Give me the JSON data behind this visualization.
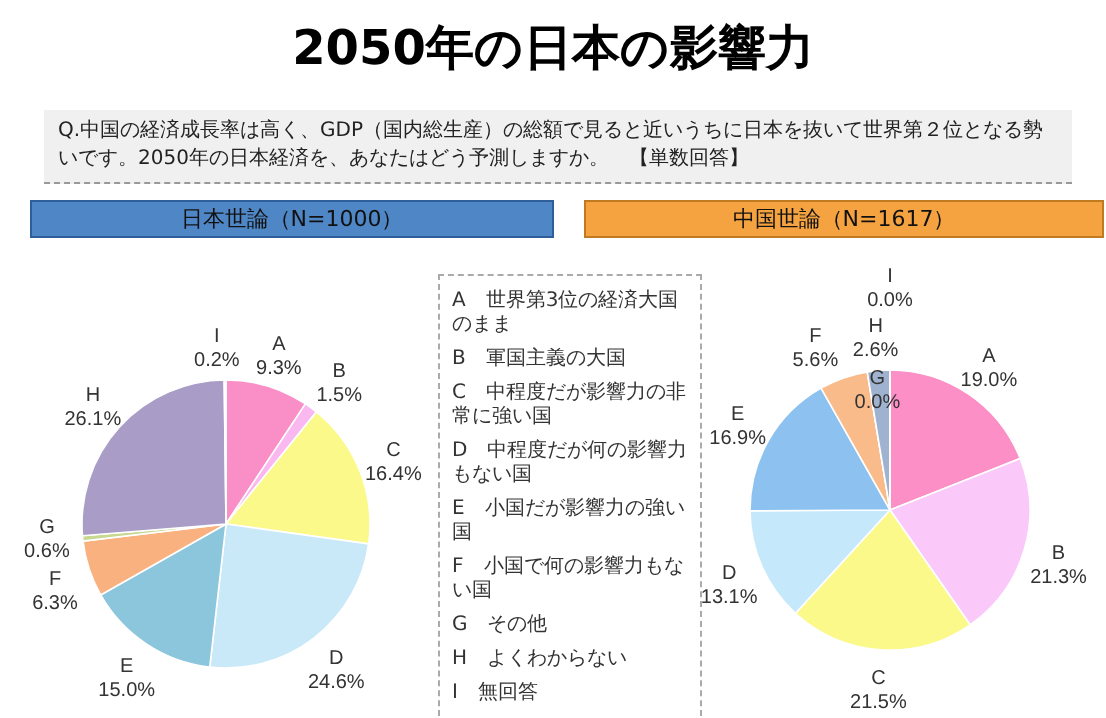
{
  "chart_data": [
    {
      "type": "other",
      "title": "2050年の日本の影響力",
      "subtitle": "Q.中国の経済成長率は高く、GDP（国内総生産）の総額で見ると近いうちに日本を抜いて世界第２位となる勢いです。2050年の日本経済を、あなたはどう予測しますか。　【単数回答】",
      "annotations": [
        "A　世界第3位の経済大国のまま",
        "B　軍国主義の大国",
        "C　中程度だが影響力の非常に強い国",
        "D　中程度だが何の影響力もない国",
        "E　小国だが影響力の強い国",
        "F　小国で何の影響力もない国",
        "G　その他",
        "H　よくわからない",
        "I　無回答"
      ]
    },
    {
      "type": "pie",
      "title": "日本世論（N=1000）",
      "categories": [
        "A",
        "B",
        "C",
        "D",
        "E",
        "F",
        "G",
        "H",
        "I"
      ],
      "values": [
        9.3,
        1.5,
        16.4,
        24.6,
        15.0,
        6.3,
        0.6,
        26.1,
        0.2
      ],
      "colors": [
        "#f98fc6",
        "#f9b8f0",
        "#fbf98a",
        "#c9e9f9",
        "#8cc6dc",
        "#f9b27f",
        "#c8d890",
        "#a99cc7",
        "#e8e8e8"
      ],
      "value_labels": [
        "9.3%",
        "1.5%",
        "16.4%",
        "24.6%",
        "15.0%",
        "6.3%",
        "0.6%",
        "26.1%",
        "0.2%"
      ]
    },
    {
      "type": "pie",
      "title": "中国世論（N=1617）",
      "categories": [
        "A",
        "B",
        "C",
        "D",
        "E",
        "F",
        "G",
        "H",
        "I"
      ],
      "values": [
        19.0,
        21.3,
        21.5,
        13.1,
        16.9,
        5.6,
        0.0,
        2.6,
        0.0
      ],
      "colors": [
        "#fb8fc6",
        "#fbc9f9",
        "#fbf98a",
        "#c6e8fb",
        "#8cc1f0",
        "#f9bb8a",
        "#c8d890",
        "#9fb3d0",
        "#e8e8e8"
      ],
      "value_labels": [
        "19.0%",
        "21.3%",
        "21.5%",
        "13.1%",
        "16.9%",
        "5.6%",
        "0.0%",
        "2.6%",
        "0.0%"
      ]
    }
  ]
}
